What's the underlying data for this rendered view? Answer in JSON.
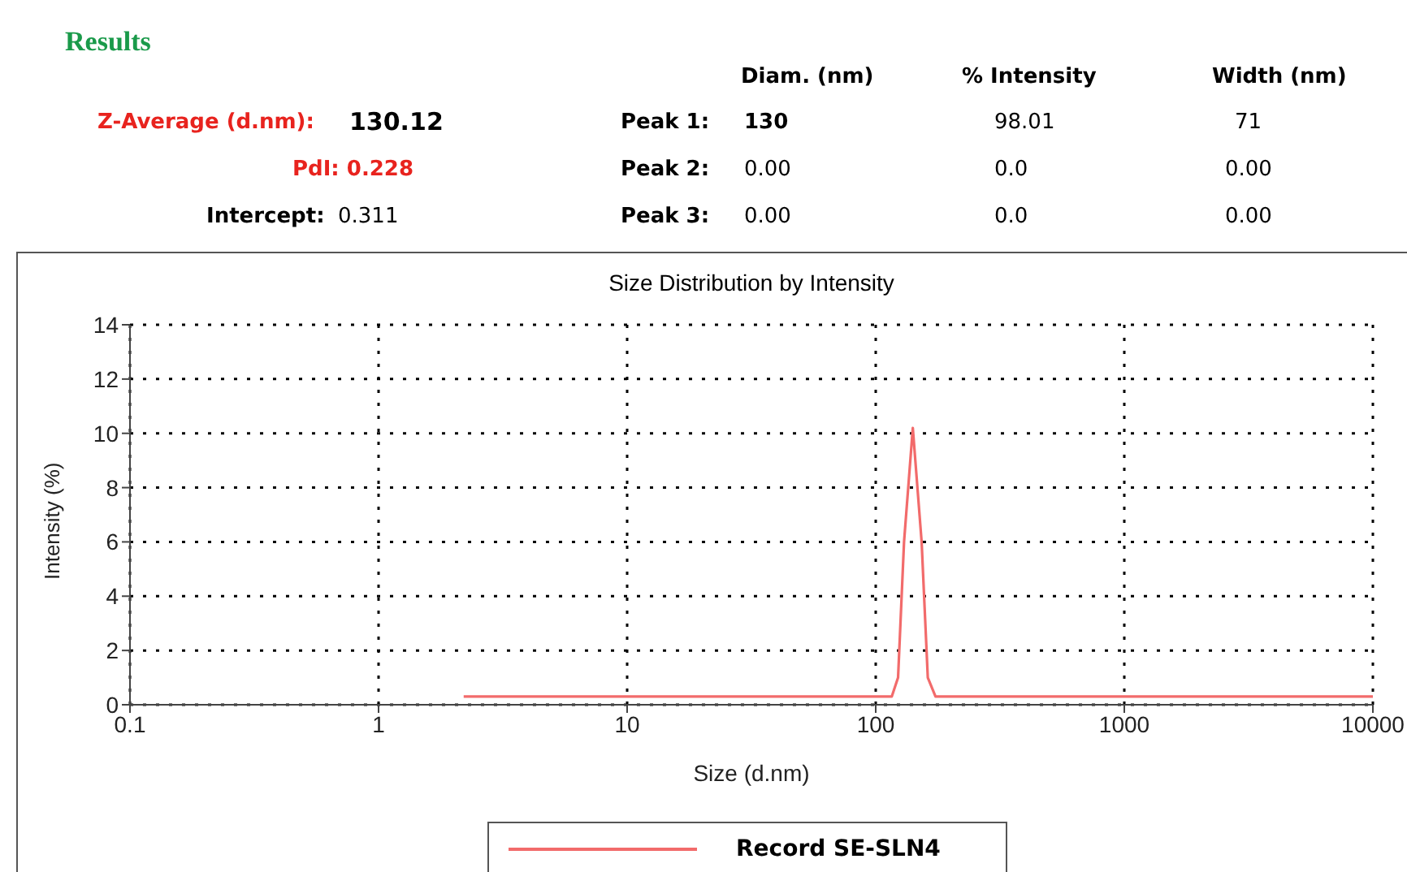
{
  "chart_data": {
    "type": "line",
    "title": "Size Distribution by Intensity",
    "xlabel": "Size (d.nm)",
    "ylabel": "Intensity (%)",
    "annotations": [
      "Results",
      "Diam. (nm)",
      "% Intensity",
      "Width (nm)",
      "Z-Average (d.nm):",
      "130.12",
      "Peak 1:",
      "130",
      "98.01",
      "71",
      "PdI: 0.228",
      "Peak 2:",
      "0.00",
      "0.0",
      "0.00",
      "Intercept:",
      "0.311",
      "Peak 3:",
      "0.00",
      "0.0",
      "0.00"
    ],
    "series": [
      {
        "name": "Record SE-SLN4",
        "color": "#f26b6b",
        "x": [
          2.2,
          100,
          116,
          123,
          130,
          141,
          153,
          162,
          174,
          10000
        ],
        "values": [
          0.3,
          0.3,
          0.3,
          1,
          6,
          10.2,
          6,
          1,
          0.3,
          0.3
        ]
      }
    ],
    "log": "x",
    "xlim": [
      0.1,
      10000
    ],
    "xticks": [
      0.1,
      1,
      10,
      100,
      1000,
      10000
    ],
    "ylim": [
      0,
      14
    ],
    "yticks": [
      0,
      2,
      4,
      6,
      8,
      10,
      12,
      14
    ],
    "grid": true,
    "legend": "bottom"
  }
}
